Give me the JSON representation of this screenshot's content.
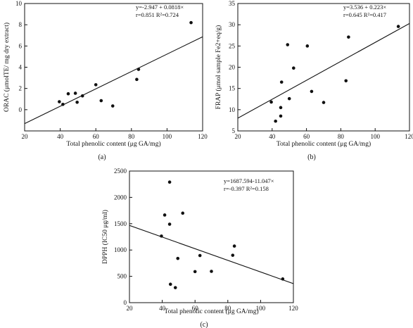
{
  "chart_data": [
    {
      "type": "scatter",
      "caption": "(a)",
      "xlabel": "Total phenolic content (μg GA/mg)",
      "ylabel": "ORAC (μmolTE/ mg dry extract)",
      "xlim": [
        20,
        120
      ],
      "ylim": [
        -2,
        10
      ],
      "xticks": [
        20,
        40,
        60,
        80,
        100,
        120
      ],
      "yticks": [
        0,
        2,
        4,
        6,
        8,
        10
      ],
      "equation_line1": "y=-2.947 + 0.0818×",
      "equation_line2": "r=0.851 R²=0.724",
      "fit": {
        "intercept": -2.947,
        "slope": 0.0818
      },
      "points": [
        {
          "x": 39.5,
          "y": 0.75
        },
        {
          "x": 41.5,
          "y": 0.5
        },
        {
          "x": 44.5,
          "y": 1.5
        },
        {
          "x": 48.5,
          "y": 1.55
        },
        {
          "x": 49.5,
          "y": 0.7
        },
        {
          "x": 52.5,
          "y": 1.3
        },
        {
          "x": 60.0,
          "y": 2.35
        },
        {
          "x": 63.0,
          "y": 0.85
        },
        {
          "x": 69.5,
          "y": 0.35
        },
        {
          "x": 83.0,
          "y": 2.85
        },
        {
          "x": 84.0,
          "y": 3.8
        },
        {
          "x": 113.5,
          "y": 8.2
        }
      ],
      "grid": false
    },
    {
      "type": "scatter",
      "caption": "(b)",
      "xlabel": "Total phenolic content (μg GA/mg)",
      "ylabel": "FRAP (μmol sample Fe2+eq/g)",
      "xlim": [
        20,
        120
      ],
      "ylim": [
        5,
        35
      ],
      "xticks": [
        20,
        40,
        60,
        80,
        100,
        120
      ],
      "yticks": [
        5,
        10,
        15,
        20,
        25,
        30,
        35
      ],
      "equation_line1": "y=3.536 + 0.223×",
      "equation_line2": "r=0.645 R²=0.417",
      "fit": {
        "intercept": 3.536,
        "slope": 0.223
      },
      "points": [
        {
          "x": 39.5,
          "y": 11.8
        },
        {
          "x": 42.0,
          "y": 7.3
        },
        {
          "x": 45.0,
          "y": 10.5
        },
        {
          "x": 45.0,
          "y": 8.5
        },
        {
          "x": 45.5,
          "y": 16.5
        },
        {
          "x": 49.0,
          "y": 25.3
        },
        {
          "x": 50.0,
          "y": 12.6
        },
        {
          "x": 52.5,
          "y": 19.8
        },
        {
          "x": 60.5,
          "y": 25.0
        },
        {
          "x": 63.0,
          "y": 14.3
        },
        {
          "x": 70.0,
          "y": 11.7
        },
        {
          "x": 83.0,
          "y": 16.8
        },
        {
          "x": 84.5,
          "y": 27.1
        },
        {
          "x": 113.5,
          "y": 29.6
        }
      ],
      "grid": false
    },
    {
      "type": "scatter",
      "caption": "(c)",
      "xlabel": "Total phenolic content (μg GA/mg)",
      "ylabel": "DPPH (IC50 μg/ml)",
      "xlim": [
        20,
        120
      ],
      "ylim": [
        0,
        2500
      ],
      "xticks": [
        20,
        40,
        60,
        80,
        100,
        120
      ],
      "yticks": [
        0,
        500,
        1000,
        1500,
        2000,
        2500
      ],
      "equation_line1": "y=1687.594-11.047×",
      "equation_line2": "r=-0.397 R²=0.158",
      "fit": {
        "intercept": 1687.594,
        "slope": -11.047
      },
      "points": [
        {
          "x": 39.5,
          "y": 1265
        },
        {
          "x": 41.5,
          "y": 1665
        },
        {
          "x": 44.5,
          "y": 2290
        },
        {
          "x": 44.5,
          "y": 1490
        },
        {
          "x": 45.0,
          "y": 350
        },
        {
          "x": 48.0,
          "y": 285
        },
        {
          "x": 49.5,
          "y": 840
        },
        {
          "x": 52.5,
          "y": 1700
        },
        {
          "x": 60.0,
          "y": 590
        },
        {
          "x": 63.0,
          "y": 895
        },
        {
          "x": 70.0,
          "y": 595
        },
        {
          "x": 83.0,
          "y": 900
        },
        {
          "x": 84.0,
          "y": 1075
        },
        {
          "x": 113.5,
          "y": 450
        }
      ],
      "grid": false
    }
  ]
}
